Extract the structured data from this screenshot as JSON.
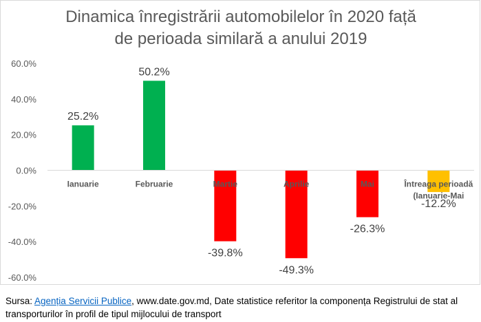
{
  "chart_data": {
    "type": "bar",
    "title_lines": [
      "Dinamica înregistrării automobilelor în 2020 față",
      "de perioada similară a anului 2019"
    ],
    "categories": [
      "Ianuarie",
      "Februarie",
      "Martie",
      "Aprilie",
      "Mai",
      "Întreaga perioadă (Ianuarie-Mai"
    ],
    "category_lines": [
      [
        "Ianuarie"
      ],
      [
        "Februarie"
      ],
      [
        "Martie"
      ],
      [
        "Aprilie"
      ],
      [
        "Mai"
      ],
      [
        "Întreaga perioadă",
        "(Ianuarie-Mai"
      ]
    ],
    "values": [
      25.2,
      50.2,
      -39.8,
      -49.3,
      -26.3,
      -12.2
    ],
    "value_labels": [
      "25.2%",
      "50.2%",
      "-39.8%",
      "-49.3%",
      "-26.3%",
      "-12.2%"
    ],
    "colors": [
      "#00b050",
      "#00b050",
      "#ff0000",
      "#ff0000",
      "#ff0000",
      "#ffc000"
    ],
    "ylim": [
      -60,
      60
    ],
    "yticks": [
      60,
      40,
      20,
      0,
      -20,
      -40,
      -60
    ],
    "ytick_labels": [
      "60.0%",
      "40.0%",
      "20.0%",
      "0.0%",
      "-20.0%",
      "-40.0%",
      "-60.0%"
    ],
    "xlabel": "",
    "ylabel": "",
    "grid": false,
    "legend": "none"
  },
  "source": {
    "prefix": "Sursa:  ",
    "link_text": "Agenția Servicii Publice",
    "rest": ", www.date.gov.md, Date statistice referitor la componența  Registrului de stat al transporturilor în profil de tipul mijlocului de transport"
  }
}
